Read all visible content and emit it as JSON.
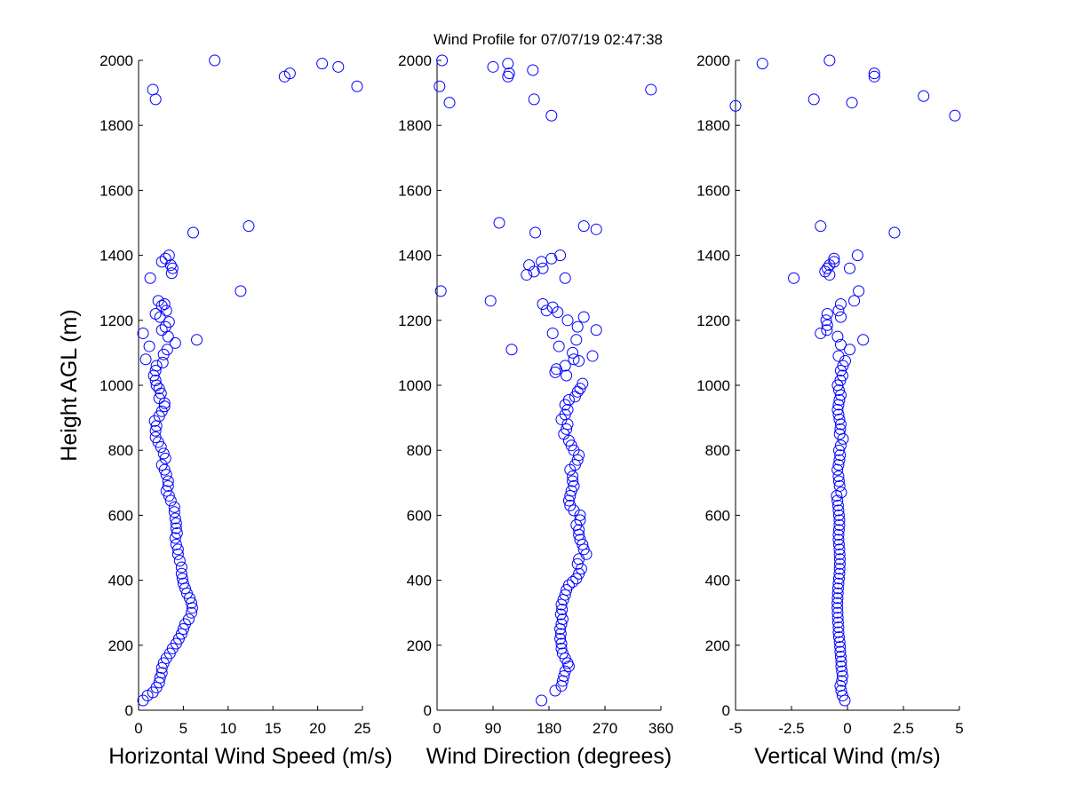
{
  "title": "Wind Profile for  07/07/19 02:47:38",
  "chart_data": [
    {
      "type": "scatter",
      "name": "horizontal-wind-speed",
      "xlabel": "Horizontal Wind Speed (m/s)",
      "ylabel": "Height AGL (m)",
      "xlim": [
        0,
        25
      ],
      "ylim": [
        0,
        2000
      ],
      "xticks": [
        "0",
        "5",
        "10",
        "15",
        "20",
        "25"
      ],
      "yticks": [
        "0",
        "200",
        "400",
        "600",
        "800",
        "1000",
        "1200",
        "1400",
        "1600",
        "1800",
        "2000"
      ],
      "marker_color": "#0000ff",
      "points": [
        [
          0.5,
          30
        ],
        [
          1.0,
          45
        ],
        [
          1.6,
          55
        ],
        [
          2.0,
          70
        ],
        [
          2.3,
          85
        ],
        [
          2.4,
          100
        ],
        [
          2.6,
          115
        ],
        [
          2.6,
          130
        ],
        [
          2.8,
          145
        ],
        [
          3.1,
          160
        ],
        [
          3.5,
          175
        ],
        [
          3.8,
          190
        ],
        [
          4.2,
          205
        ],
        [
          4.5,
          220
        ],
        [
          4.8,
          235
        ],
        [
          5.0,
          250
        ],
        [
          5.2,
          265
        ],
        [
          5.6,
          280
        ],
        [
          5.9,
          300
        ],
        [
          6.0,
          315
        ],
        [
          5.9,
          330
        ],
        [
          5.7,
          345
        ],
        [
          5.4,
          360
        ],
        [
          5.2,
          375
        ],
        [
          5.0,
          390
        ],
        [
          4.9,
          405
        ],
        [
          4.8,
          420
        ],
        [
          4.8,
          440
        ],
        [
          4.6,
          460
        ],
        [
          4.4,
          480
        ],
        [
          4.4,
          495
        ],
        [
          4.2,
          510
        ],
        [
          4.1,
          530
        ],
        [
          4.3,
          545
        ],
        [
          4.2,
          560
        ],
        [
          4.2,
          575
        ],
        [
          4.1,
          590
        ],
        [
          4.0,
          610
        ],
        [
          4.0,
          625
        ],
        [
          3.6,
          645
        ],
        [
          3.4,
          660
        ],
        [
          3.1,
          675
        ],
        [
          3.3,
          690
        ],
        [
          3.3,
          705
        ],
        [
          3.1,
          725
        ],
        [
          2.9,
          740
        ],
        [
          2.6,
          755
        ],
        [
          3.0,
          775
        ],
        [
          2.8,
          790
        ],
        [
          2.5,
          810
        ],
        [
          2.2,
          825
        ],
        [
          1.9,
          840
        ],
        [
          1.9,
          860
        ],
        [
          2.0,
          875
        ],
        [
          1.8,
          890
        ],
        [
          2.3,
          905
        ],
        [
          2.6,
          920
        ],
        [
          2.9,
          935
        ],
        [
          2.9,
          945
        ],
        [
          2.3,
          960
        ],
        [
          2.5,
          975
        ],
        [
          2.3,
          990
        ],
        [
          2.0,
          1000
        ],
        [
          1.9,
          1015
        ],
        [
          1.7,
          1030
        ],
        [
          1.9,
          1045
        ],
        [
          2.0,
          1060
        ],
        [
          2.7,
          1070
        ],
        [
          0.8,
          1080
        ],
        [
          2.8,
          1095
        ],
        [
          3.2,
          1110
        ],
        [
          1.2,
          1120
        ],
        [
          4.1,
          1130
        ],
        [
          6.5,
          1140
        ],
        [
          3.3,
          1150
        ],
        [
          0.5,
          1160
        ],
        [
          2.6,
          1170
        ],
        [
          3.0,
          1180
        ],
        [
          3.4,
          1195
        ],
        [
          2.4,
          1210
        ],
        [
          1.9,
          1220
        ],
        [
          3.1,
          1230
        ],
        [
          2.6,
          1245
        ],
        [
          2.9,
          1250
        ],
        [
          2.2,
          1260
        ],
        [
          11.4,
          1290
        ],
        [
          1.3,
          1330
        ],
        [
          3.7,
          1345
        ],
        [
          3.8,
          1360
        ],
        [
          3.6,
          1370
        ],
        [
          2.6,
          1380
        ],
        [
          3.0,
          1390
        ],
        [
          3.4,
          1400
        ],
        [
          6.1,
          1470
        ],
        [
          12.3,
          1490
        ],
        [
          1.9,
          1880
        ],
        [
          1.6,
          1910
        ],
        [
          24.4,
          1920
        ],
        [
          16.3,
          1950
        ],
        [
          16.9,
          1960
        ],
        [
          22.3,
          1980
        ],
        [
          20.5,
          1990
        ],
        [
          8.5,
          2000
        ]
      ]
    },
    {
      "type": "scatter",
      "name": "wind-direction",
      "xlabel": "Wind Direction (degrees)",
      "ylabel": "",
      "xlim": [
        0,
        360
      ],
      "ylim": [
        0,
        2000
      ],
      "xticks": [
        "0",
        "90",
        "180",
        "270",
        "360"
      ],
      "yticks": [
        "0",
        "200",
        "400",
        "600",
        "800",
        "1000",
        "1200",
        "1400",
        "1600",
        "1800",
        "2000"
      ],
      "marker_color": "#0000ff",
      "points": [
        [
          168,
          30
        ],
        [
          190,
          60
        ],
        [
          200,
          75
        ],
        [
          202,
          90
        ],
        [
          204,
          105
        ],
        [
          206,
          120
        ],
        [
          212,
          135
        ],
        [
          210,
          145
        ],
        [
          206,
          160
        ],
        [
          202,
          175
        ],
        [
          200,
          190
        ],
        [
          200,
          205
        ],
        [
          198,
          220
        ],
        [
          199,
          235
        ],
        [
          198,
          250
        ],
        [
          200,
          265
        ],
        [
          202,
          280
        ],
        [
          199,
          295
        ],
        [
          201,
          310
        ],
        [
          200,
          325
        ],
        [
          203,
          340
        ],
        [
          206,
          355
        ],
        [
          208,
          370
        ],
        [
          212,
          385
        ],
        [
          218,
          395
        ],
        [
          224,
          405
        ],
        [
          228,
          420
        ],
        [
          232,
          435
        ],
        [
          226,
          450
        ],
        [
          228,
          465
        ],
        [
          240,
          480
        ],
        [
          236,
          495
        ],
        [
          234,
          510
        ],
        [
          230,
          525
        ],
        [
          228,
          540
        ],
        [
          228,
          555
        ],
        [
          224,
          570
        ],
        [
          230,
          585
        ],
        [
          230,
          600
        ],
        [
          220,
          615
        ],
        [
          214,
          630
        ],
        [
          212,
          645
        ],
        [
          214,
          660
        ],
        [
          216,
          675
        ],
        [
          220,
          690
        ],
        [
          218,
          705
        ],
        [
          218,
          720
        ],
        [
          214,
          740
        ],
        [
          222,
          755
        ],
        [
          226,
          770
        ],
        [
          228,
          785
        ],
        [
          220,
          800
        ],
        [
          216,
          815
        ],
        [
          212,
          830
        ],
        [
          204,
          850
        ],
        [
          208,
          865
        ],
        [
          210,
          880
        ],
        [
          200,
          895
        ],
        [
          206,
          910
        ],
        [
          210,
          925
        ],
        [
          206,
          940
        ],
        [
          212,
          955
        ],
        [
          222,
          965
        ],
        [
          226,
          980
        ],
        [
          230,
          990
        ],
        [
          234,
          1005
        ],
        [
          208,
          1030
        ],
        [
          190,
          1040
        ],
        [
          192,
          1050
        ],
        [
          206,
          1060
        ],
        [
          228,
          1075
        ],
        [
          220,
          1080
        ],
        [
          250,
          1090
        ],
        [
          218,
          1100
        ],
        [
          120,
          1110
        ],
        [
          196,
          1120
        ],
        [
          224,
          1140
        ],
        [
          186,
          1160
        ],
        [
          256,
          1170
        ],
        [
          226,
          1180
        ],
        [
          210,
          1200
        ],
        [
          236,
          1210
        ],
        [
          194,
          1225
        ],
        [
          176,
          1230
        ],
        [
          186,
          1240
        ],
        [
          170,
          1250
        ],
        [
          86,
          1260
        ],
        [
          6,
          1290
        ],
        [
          206,
          1330
        ],
        [
          144,
          1340
        ],
        [
          156,
          1350
        ],
        [
          170,
          1360
        ],
        [
          148,
          1370
        ],
        [
          168,
          1380
        ],
        [
          184,
          1390
        ],
        [
          198,
          1400
        ],
        [
          158,
          1470
        ],
        [
          256,
          1480
        ],
        [
          236,
          1490
        ],
        [
          100,
          1500
        ],
        [
          184,
          1830
        ],
        [
          20,
          1870
        ],
        [
          156,
          1880
        ],
        [
          4,
          1920
        ],
        [
          344,
          1910
        ],
        [
          114,
          1950
        ],
        [
          116,
          1960
        ],
        [
          154,
          1970
        ],
        [
          90,
          1980
        ],
        [
          114,
          1990
        ],
        [
          8,
          2000
        ]
      ]
    },
    {
      "type": "scatter",
      "name": "vertical-wind",
      "xlabel": "Vertical Wind (m/s)",
      "ylabel": "",
      "xlim": [
        -5,
        5
      ],
      "ylim": [
        0,
        2000
      ],
      "xticks": [
        "-5",
        "-2.5",
        "0",
        "2.5",
        "5"
      ],
      "yticks": [
        "0",
        "200",
        "400",
        "600",
        "800",
        "1000",
        "1200",
        "1400",
        "1600",
        "1800",
        "2000"
      ],
      "marker_color": "#0000ff",
      "points": [
        [
          -0.12,
          30
        ],
        [
          -0.22,
          45
        ],
        [
          -0.28,
          60
        ],
        [
          -0.32,
          75
        ],
        [
          -0.25,
          90
        ],
        [
          -0.22,
          105
        ],
        [
          -0.25,
          120
        ],
        [
          -0.28,
          135
        ],
        [
          -0.28,
          150
        ],
        [
          -0.3,
          165
        ],
        [
          -0.32,
          180
        ],
        [
          -0.33,
          195
        ],
        [
          -0.35,
          210
        ],
        [
          -0.38,
          225
        ],
        [
          -0.4,
          240
        ],
        [
          -0.4,
          255
        ],
        [
          -0.42,
          270
        ],
        [
          -0.43,
          285
        ],
        [
          -0.44,
          300
        ],
        [
          -0.45,
          315
        ],
        [
          -0.45,
          330
        ],
        [
          -0.44,
          345
        ],
        [
          -0.43,
          360
        ],
        [
          -0.42,
          375
        ],
        [
          -0.4,
          390
        ],
        [
          -0.38,
          405
        ],
        [
          -0.36,
          420
        ],
        [
          -0.35,
          435
        ],
        [
          -0.34,
          450
        ],
        [
          -0.34,
          465
        ],
        [
          -0.35,
          480
        ],
        [
          -0.36,
          495
        ],
        [
          -0.38,
          510
        ],
        [
          -0.4,
          525
        ],
        [
          -0.4,
          540
        ],
        [
          -0.38,
          555
        ],
        [
          -0.36,
          570
        ],
        [
          -0.36,
          585
        ],
        [
          -0.38,
          600
        ],
        [
          -0.4,
          615
        ],
        [
          -0.42,
          630
        ],
        [
          -0.45,
          645
        ],
        [
          -0.48,
          660
        ],
        [
          -0.28,
          670
        ],
        [
          -0.35,
          690
        ],
        [
          -0.38,
          705
        ],
        [
          -0.4,
          720
        ],
        [
          -0.45,
          740
        ],
        [
          -0.4,
          755
        ],
        [
          -0.36,
          770
        ],
        [
          -0.33,
          785
        ],
        [
          -0.38,
          800
        ],
        [
          -0.3,
          815
        ],
        [
          -0.2,
          835
        ],
        [
          -0.35,
          850
        ],
        [
          -0.32,
          865
        ],
        [
          -0.3,
          880
        ],
        [
          -0.36,
          895
        ],
        [
          -0.4,
          910
        ],
        [
          -0.44,
          925
        ],
        [
          -0.4,
          940
        ],
        [
          -0.36,
          955
        ],
        [
          -0.3,
          970
        ],
        [
          -0.38,
          985
        ],
        [
          -0.44,
          1000
        ],
        [
          -0.32,
          1015
        ],
        [
          -0.22,
          1030
        ],
        [
          -0.3,
          1045
        ],
        [
          -0.2,
          1060
        ],
        [
          -0.1,
          1075
        ],
        [
          -0.4,
          1090
        ],
        [
          0.1,
          1110
        ],
        [
          -0.3,
          1125
        ],
        [
          0.7,
          1140
        ],
        [
          -0.44,
          1150
        ],
        [
          -1.2,
          1160
        ],
        [
          -0.92,
          1170
        ],
        [
          -0.9,
          1185
        ],
        [
          -0.95,
          1200
        ],
        [
          -0.3,
          1210
        ],
        [
          -0.9,
          1220
        ],
        [
          -0.4,
          1230
        ],
        [
          0.3,
          1260
        ],
        [
          -0.3,
          1250
        ],
        [
          0.5,
          1290
        ],
        [
          -2.4,
          1330
        ],
        [
          -0.8,
          1340
        ],
        [
          -1.0,
          1350
        ],
        [
          -0.9,
          1360
        ],
        [
          0.1,
          1360
        ],
        [
          -0.8,
          1370
        ],
        [
          -0.6,
          1380
        ],
        [
          -0.6,
          1390
        ],
        [
          0.45,
          1400
        ],
        [
          -1.2,
          1490
        ],
        [
          2.1,
          1470
        ],
        [
          -5.0,
          1860
        ],
        [
          4.8,
          1830
        ],
        [
          0.2,
          1870
        ],
        [
          -1.5,
          1880
        ],
        [
          3.4,
          1890
        ],
        [
          1.2,
          1950
        ],
        [
          1.2,
          1960
        ],
        [
          -3.8,
          1990
        ],
        [
          -0.8,
          2000
        ]
      ]
    }
  ]
}
